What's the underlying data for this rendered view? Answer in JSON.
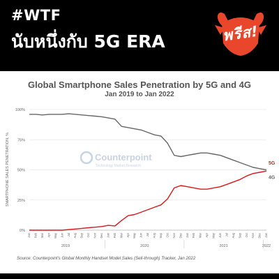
{
  "header": {
    "hashtag": "#WTF",
    "headline": "นับหนึ่งกับ 5G ERA",
    "logo_text": "พรีส!",
    "logo_color": "#e8472b"
  },
  "chart_data": {
    "type": "line",
    "title": "Global Smartphone Sales Penetration by 5G and 4G",
    "subtitle": "Jan 2019 to Jan 2022",
    "ylabel": "SMARTPHONE SALES PENETRATION, %",
    "xlabel": "",
    "ylim": [
      0,
      100
    ],
    "yticks": [
      "0%",
      "25%",
      "50%",
      "75%",
      "100%"
    ],
    "months": [
      "Jan",
      "Feb",
      "Mar",
      "Apr",
      "May",
      "Jun",
      "Jul",
      "Aug",
      "Sep",
      "Oct",
      "Nov",
      "Dec",
      "Jan",
      "Feb",
      "Mar",
      "Apr",
      "May",
      "Jun",
      "Jul",
      "Aug",
      "Sep",
      "Oct",
      "Nov",
      "Dec",
      "Jan",
      "Feb",
      "Mar",
      "Apr",
      "May",
      "Jun",
      "Jul",
      "Aug",
      "Sep",
      "Oct",
      "Nov",
      "Dec",
      "Jan"
    ],
    "years": [
      {
        "label": "2019",
        "start": 0,
        "end": 11
      },
      {
        "label": "2020",
        "start": 12,
        "end": 23
      },
      {
        "label": "2021",
        "start": 24,
        "end": 35
      },
      {
        "label": "2022",
        "start": 36,
        "end": 36
      }
    ],
    "grid": true,
    "series": [
      {
        "name": "5G",
        "color": "#d7191c",
        "values": [
          0,
          0,
          0,
          0,
          0,
          0,
          0.5,
          1,
          1.5,
          2,
          2.5,
          3,
          4,
          3.5,
          8,
          12,
          13,
          15,
          17,
          19,
          21,
          26,
          35,
          37,
          36,
          35,
          34,
          34,
          35,
          36,
          38,
          40,
          42,
          45,
          47,
          48,
          49
        ]
      },
      {
        "name": "4G",
        "color": "#666666",
        "values": [
          96,
          96,
          95.5,
          96,
          96,
          96,
          96.5,
          96,
          95.5,
          95,
          94.5,
          94,
          93,
          92,
          86,
          85,
          84,
          83,
          81,
          79,
          78,
          72,
          62,
          61,
          62,
          63,
          64,
          64,
          63,
          62,
          60,
          58,
          56,
          54,
          52,
          51,
          50
        ]
      }
    ],
    "watermark": {
      "name": "Counterpoint",
      "tagline": "Technology Market Research"
    }
  },
  "source": "Source: Counterpoint's Global Monthly Handset Model Sales (Sell-through) Tracker, Jan 2022"
}
